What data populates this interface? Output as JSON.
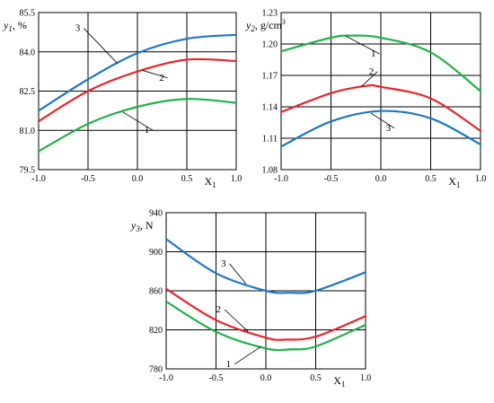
{
  "chart_data": [
    {
      "id": "y1",
      "type": "line",
      "ylabel_main": "y",
      "ylabel_sub": "1",
      "ylabel_unit": ", %",
      "xlabel_main": "X",
      "xlabel_sub": "1",
      "xlim": [
        -1.0,
        1.0
      ],
      "ylim": [
        79.5,
        85.5
      ],
      "xticks": [
        -1.0,
        -0.5,
        0.0,
        0.5,
        1.0
      ],
      "xtick_labels": [
        "-1.0",
        "-0.5",
        "0.0",
        "0.5",
        "1.0"
      ],
      "yticks": [
        79.5,
        81.0,
        82.5,
        84.0,
        85.5
      ],
      "ytick_labels": [
        "79.5",
        "81.0",
        "82.5",
        "84.0",
        "85.5"
      ],
      "grid": true,
      "series": [
        {
          "label": "1",
          "color": "#22b14c",
          "x": [
            -1.0,
            -0.5,
            0.0,
            0.5,
            1.0
          ],
          "y": [
            80.2,
            81.25,
            81.9,
            82.2,
            82.05
          ]
        },
        {
          "label": "2",
          "color": "#e8262b",
          "x": [
            -1.0,
            -0.5,
            0.0,
            0.5,
            1.0
          ],
          "y": [
            81.35,
            82.5,
            83.25,
            83.7,
            83.65
          ]
        },
        {
          "label": "3",
          "color": "#1f77c4",
          "x": [
            -1.0,
            -0.5,
            0.0,
            0.5,
            1.0
          ],
          "y": [
            81.75,
            82.95,
            83.95,
            84.5,
            84.65
          ]
        }
      ],
      "annotations": [
        {
          "text": "3",
          "series": 2,
          "at_x": -0.2,
          "label_x": -0.58,
          "label_y": 84.8
        },
        {
          "text": "2",
          "series": 1,
          "at_x": 0.05,
          "label_x": 0.27,
          "label_y": 82.9
        },
        {
          "text": "1",
          "series": 0,
          "at_x": -0.15,
          "label_x": 0.12,
          "label_y": 80.9
        }
      ]
    },
    {
      "id": "y2",
      "type": "line",
      "ylabel_main": "y",
      "ylabel_sub": "2",
      "ylabel_unit": ", g/cm",
      "ylabel_sup": "3",
      "xlabel_main": "X",
      "xlabel_sub": "1",
      "xlim": [
        -1.0,
        1.0
      ],
      "ylim": [
        1.08,
        1.23
      ],
      "xticks": [
        -1.0,
        -0.5,
        0.0,
        0.5,
        1.0
      ],
      "xtick_labels": [
        "-1.0",
        "-0.5",
        "0.0",
        "0.5",
        "1.0"
      ],
      "yticks": [
        1.08,
        1.11,
        1.14,
        1.17,
        1.2,
        1.23
      ],
      "ytick_labels": [
        "1.08",
        "1.11",
        "1.14",
        "1.17",
        "1.20",
        "1.23"
      ],
      "grid": true,
      "series": [
        {
          "label": "1",
          "color": "#22b14c",
          "x": [
            -1.0,
            -0.5,
            -0.3,
            0.0,
            0.5,
            1.0
          ],
          "y": [
            1.193,
            1.206,
            1.208,
            1.206,
            1.192,
            1.155
          ]
        },
        {
          "label": "2",
          "color": "#e8262b",
          "x": [
            -1.0,
            -0.5,
            -0.15,
            0.0,
            0.5,
            1.0
          ],
          "y": [
            1.135,
            1.153,
            1.16,
            1.159,
            1.148,
            1.117
          ]
        },
        {
          "label": "3",
          "color": "#1f77c4",
          "x": [
            -1.0,
            -0.5,
            0.0,
            0.5,
            1.0
          ],
          "y": [
            1.102,
            1.126,
            1.136,
            1.129,
            1.104
          ]
        }
      ],
      "annotations": [
        {
          "text": "1",
          "series": 0,
          "at_x": -0.35,
          "label_x": -0.05,
          "label_y": 1.188
        },
        {
          "text": "2",
          "series": 1,
          "at_x": -0.2,
          "label_x": -0.07,
          "label_y": 1.171
        },
        {
          "text": "3",
          "series": 2,
          "at_x": -0.1,
          "label_x": 0.1,
          "label_y": 1.117
        }
      ]
    },
    {
      "id": "y3",
      "type": "line",
      "ylabel_main": "y",
      "ylabel_sub": "3",
      "ylabel_unit": ", N",
      "xlabel_main": "X",
      "xlabel_sub": "1",
      "xlim": [
        -1.0,
        1.0
      ],
      "ylim": [
        780,
        940
      ],
      "xticks": [
        -1.0,
        -0.5,
        0.0,
        0.5,
        1.0
      ],
      "xtick_labels": [
        "-1.0",
        "-0.5",
        "0.0",
        "0.5",
        "1.0"
      ],
      "yticks": [
        780,
        820,
        860,
        900,
        940
      ],
      "ytick_labels": [
        "780",
        "820",
        "860",
        "900",
        "940"
      ],
      "grid": true,
      "series": [
        {
          "label": "1",
          "color": "#22b14c",
          "x": [
            -1.0,
            -0.5,
            0.0,
            0.25,
            0.5,
            1.0
          ],
          "y": [
            849,
            818,
            801,
            800,
            803,
            825
          ]
        },
        {
          "label": "2",
          "color": "#e8262b",
          "x": [
            -1.0,
            -0.5,
            0.0,
            0.2,
            0.5,
            1.0
          ],
          "y": [
            862,
            830,
            812,
            810,
            813,
            834
          ]
        },
        {
          "label": "3",
          "color": "#1f77c4",
          "x": [
            -1.0,
            -0.5,
            0.0,
            0.25,
            0.5,
            1.0
          ],
          "y": [
            913,
            878,
            860,
            858,
            860,
            879
          ]
        }
      ],
      "annotations": [
        {
          "text": "3",
          "series": 2,
          "at_x": -0.2,
          "label_x": -0.4,
          "label_y": 885
        },
        {
          "text": "2",
          "series": 1,
          "at_x": -0.18,
          "label_x": -0.45,
          "label_y": 838
        },
        {
          "text": "1",
          "series": 0,
          "at_x": -0.05,
          "label_x": -0.35,
          "label_y": 782
        }
      ]
    }
  ]
}
